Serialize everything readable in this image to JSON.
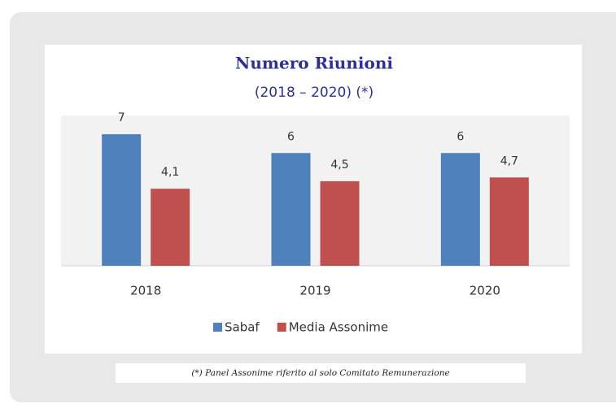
{
  "chart_data": {
    "type": "bar",
    "title": "Numero Riunioni",
    "subtitle": "(2018 – 2020) (*)",
    "categories": [
      "2018",
      "2019",
      "2020"
    ],
    "series": [
      {
        "name": "Sabaf",
        "color": "#4f81bd",
        "values": [
          7,
          6,
          6
        ]
      },
      {
        "name": "Media Assonime",
        "color": "#c0504d",
        "values": [
          4.1,
          4.5,
          4.7
        ],
        "value_labels": [
          "4,1",
          "4,5",
          "4,7"
        ]
      }
    ],
    "ylim": [
      0,
      8
    ],
    "legend": "bottom",
    "footnote": "(*) Panel Assonime riferito al solo Comitato Remunerazione"
  }
}
